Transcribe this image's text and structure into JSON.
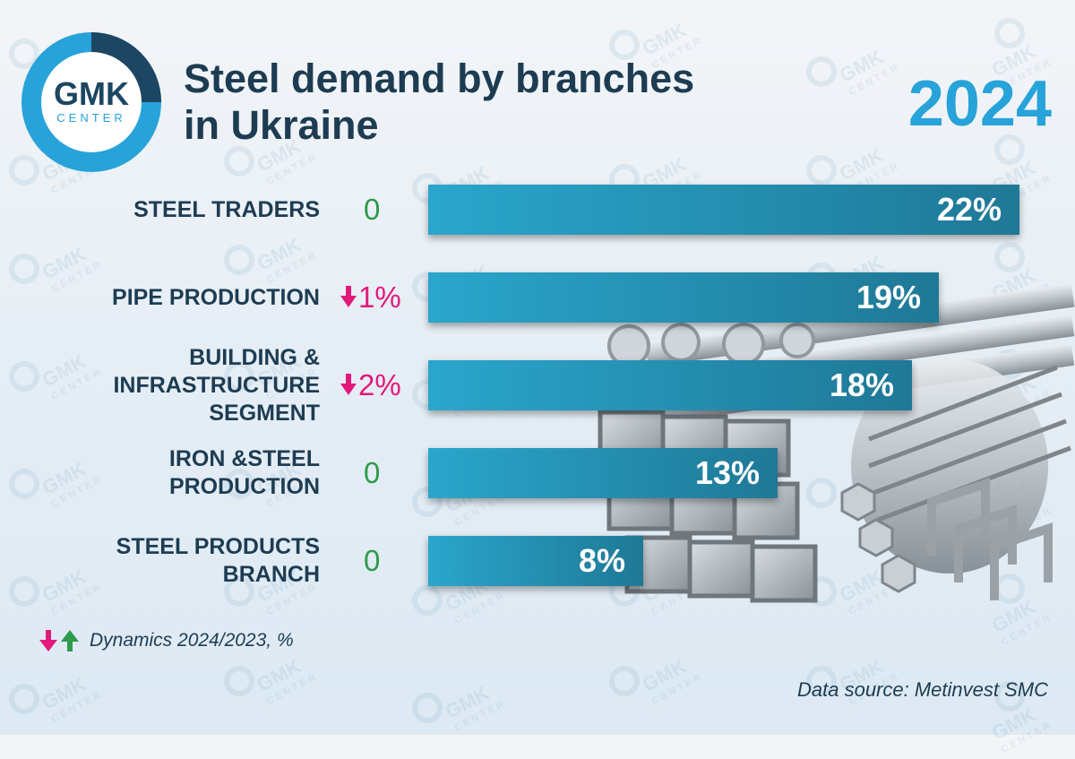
{
  "logo": {
    "name": "GMK",
    "sub": "CENTER"
  },
  "header": {
    "title_line1": "Steel demand by branches",
    "title_line2": "in Ukraine",
    "year": "2024"
  },
  "chart_data": {
    "type": "bar",
    "orientation": "horizontal",
    "categories": [
      "STEEL TRADERS",
      "PIPE PRODUCTION",
      "BUILDING & INFRASTRUCTURE SEGMENT",
      "IRON &STEEL PRODUCTION",
      "STEEL PRODUCTS BRANCH"
    ],
    "category_lines": [
      [
        "STEEL TRADERS"
      ],
      [
        "PIPE PRODUCTION"
      ],
      [
        "BUILDING &",
        "INFRASTRUCTURE",
        "SEGMENT"
      ],
      [
        "IRON &STEEL",
        "PRODUCTION"
      ],
      [
        "STEEL PRODUCTS",
        "BRANCH"
      ]
    ],
    "values": [
      22,
      19,
      18,
      13,
      8
    ],
    "value_labels": [
      "22%",
      "19%",
      "18%",
      "13%",
      "8%"
    ],
    "dynamics": [
      {
        "direction": "none",
        "text": "0"
      },
      {
        "direction": "down",
        "text": "1%"
      },
      {
        "direction": "down",
        "text": "2%"
      },
      {
        "direction": "none",
        "text": "0"
      },
      {
        "direction": "none",
        "text": "0"
      }
    ],
    "xlim": [
      0,
      22
    ]
  },
  "legend": {
    "text": "Dynamics 2024/2023, %",
    "icons": [
      "arrow-down-icon",
      "arrow-up-icon"
    ]
  },
  "source": "Data source: Metinvest SMC",
  "colors": {
    "bar": "#2aa6cc",
    "bar_dark": "#1f7896",
    "negative": "#e2197b",
    "positive": "#2e9a4a",
    "title": "#1d3c52",
    "year": "#27a3d9"
  }
}
